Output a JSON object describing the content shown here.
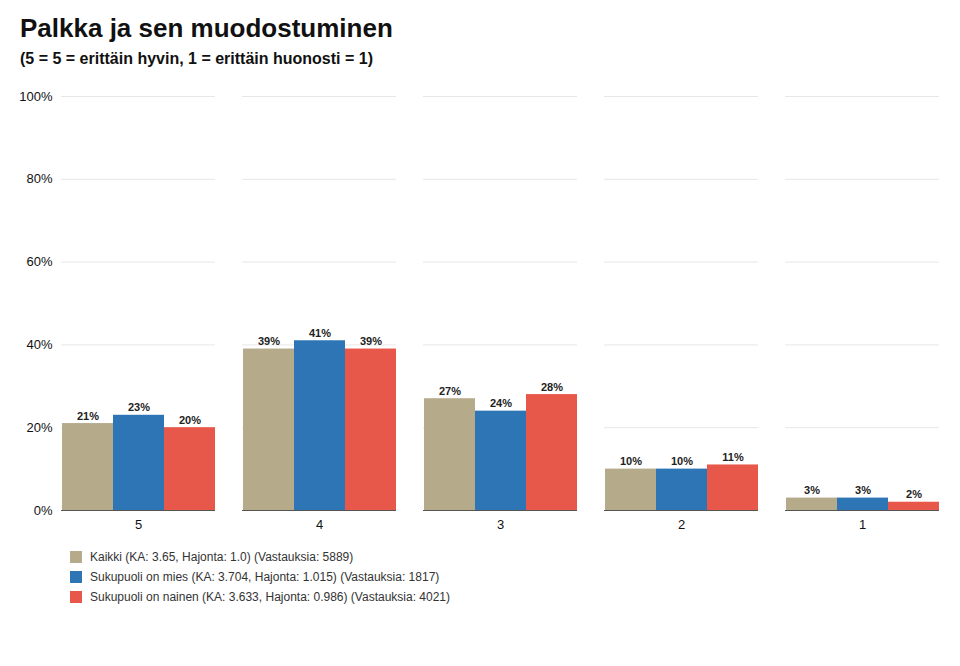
{
  "chart_data": {
    "type": "bar",
    "title": "Palkka ja sen muodostuminen",
    "subtitle": "(5 = 5 = erittäin hyvin, 1 = erittäin huonosti = 1)",
    "categories": [
      5,
      4,
      3,
      2,
      1
    ],
    "series": [
      {
        "name": "Kaikki (KA: 3.65, Hajonta: 1.0) (Vastauksia: 5889)",
        "color": "#b5aa8a",
        "values": [
          21,
          39,
          27,
          10,
          3
        ],
        "value_labels": [
          "21%",
          "39%",
          "27%",
          "10%",
          "3%"
        ]
      },
      {
        "name": "Sukupuoli on mies (KA: 3.704, Hajonta: 1.015) (Vastauksia: 1817)",
        "color": "#2e75b6",
        "values": [
          23,
          41,
          24,
          10,
          3
        ],
        "value_labels": [
          "23%",
          "41%",
          "24%",
          "10%",
          "3%"
        ]
      },
      {
        "name": "Sukupuoli on nainen (KA: 3.633, Hajonta: 0.986) (Vastauksia: 4021)",
        "color": "#e8584a",
        "values": [
          20,
          39,
          28,
          11,
          2
        ],
        "value_labels": [
          "20%",
          "39%",
          "28%",
          "11%",
          "2%"
        ]
      }
    ],
    "ylim": [
      0,
      100
    ],
    "yticks": [
      {
        "value": 0,
        "label": "0%"
      },
      {
        "value": 20,
        "label": "20%"
      },
      {
        "value": 40,
        "label": "40%"
      },
      {
        "value": 60,
        "label": "60%"
      },
      {
        "value": 80,
        "label": "80%"
      },
      {
        "value": 100,
        "label": "100%"
      }
    ],
    "grid": true,
    "data_labels": true,
    "legend": "bottom"
  }
}
